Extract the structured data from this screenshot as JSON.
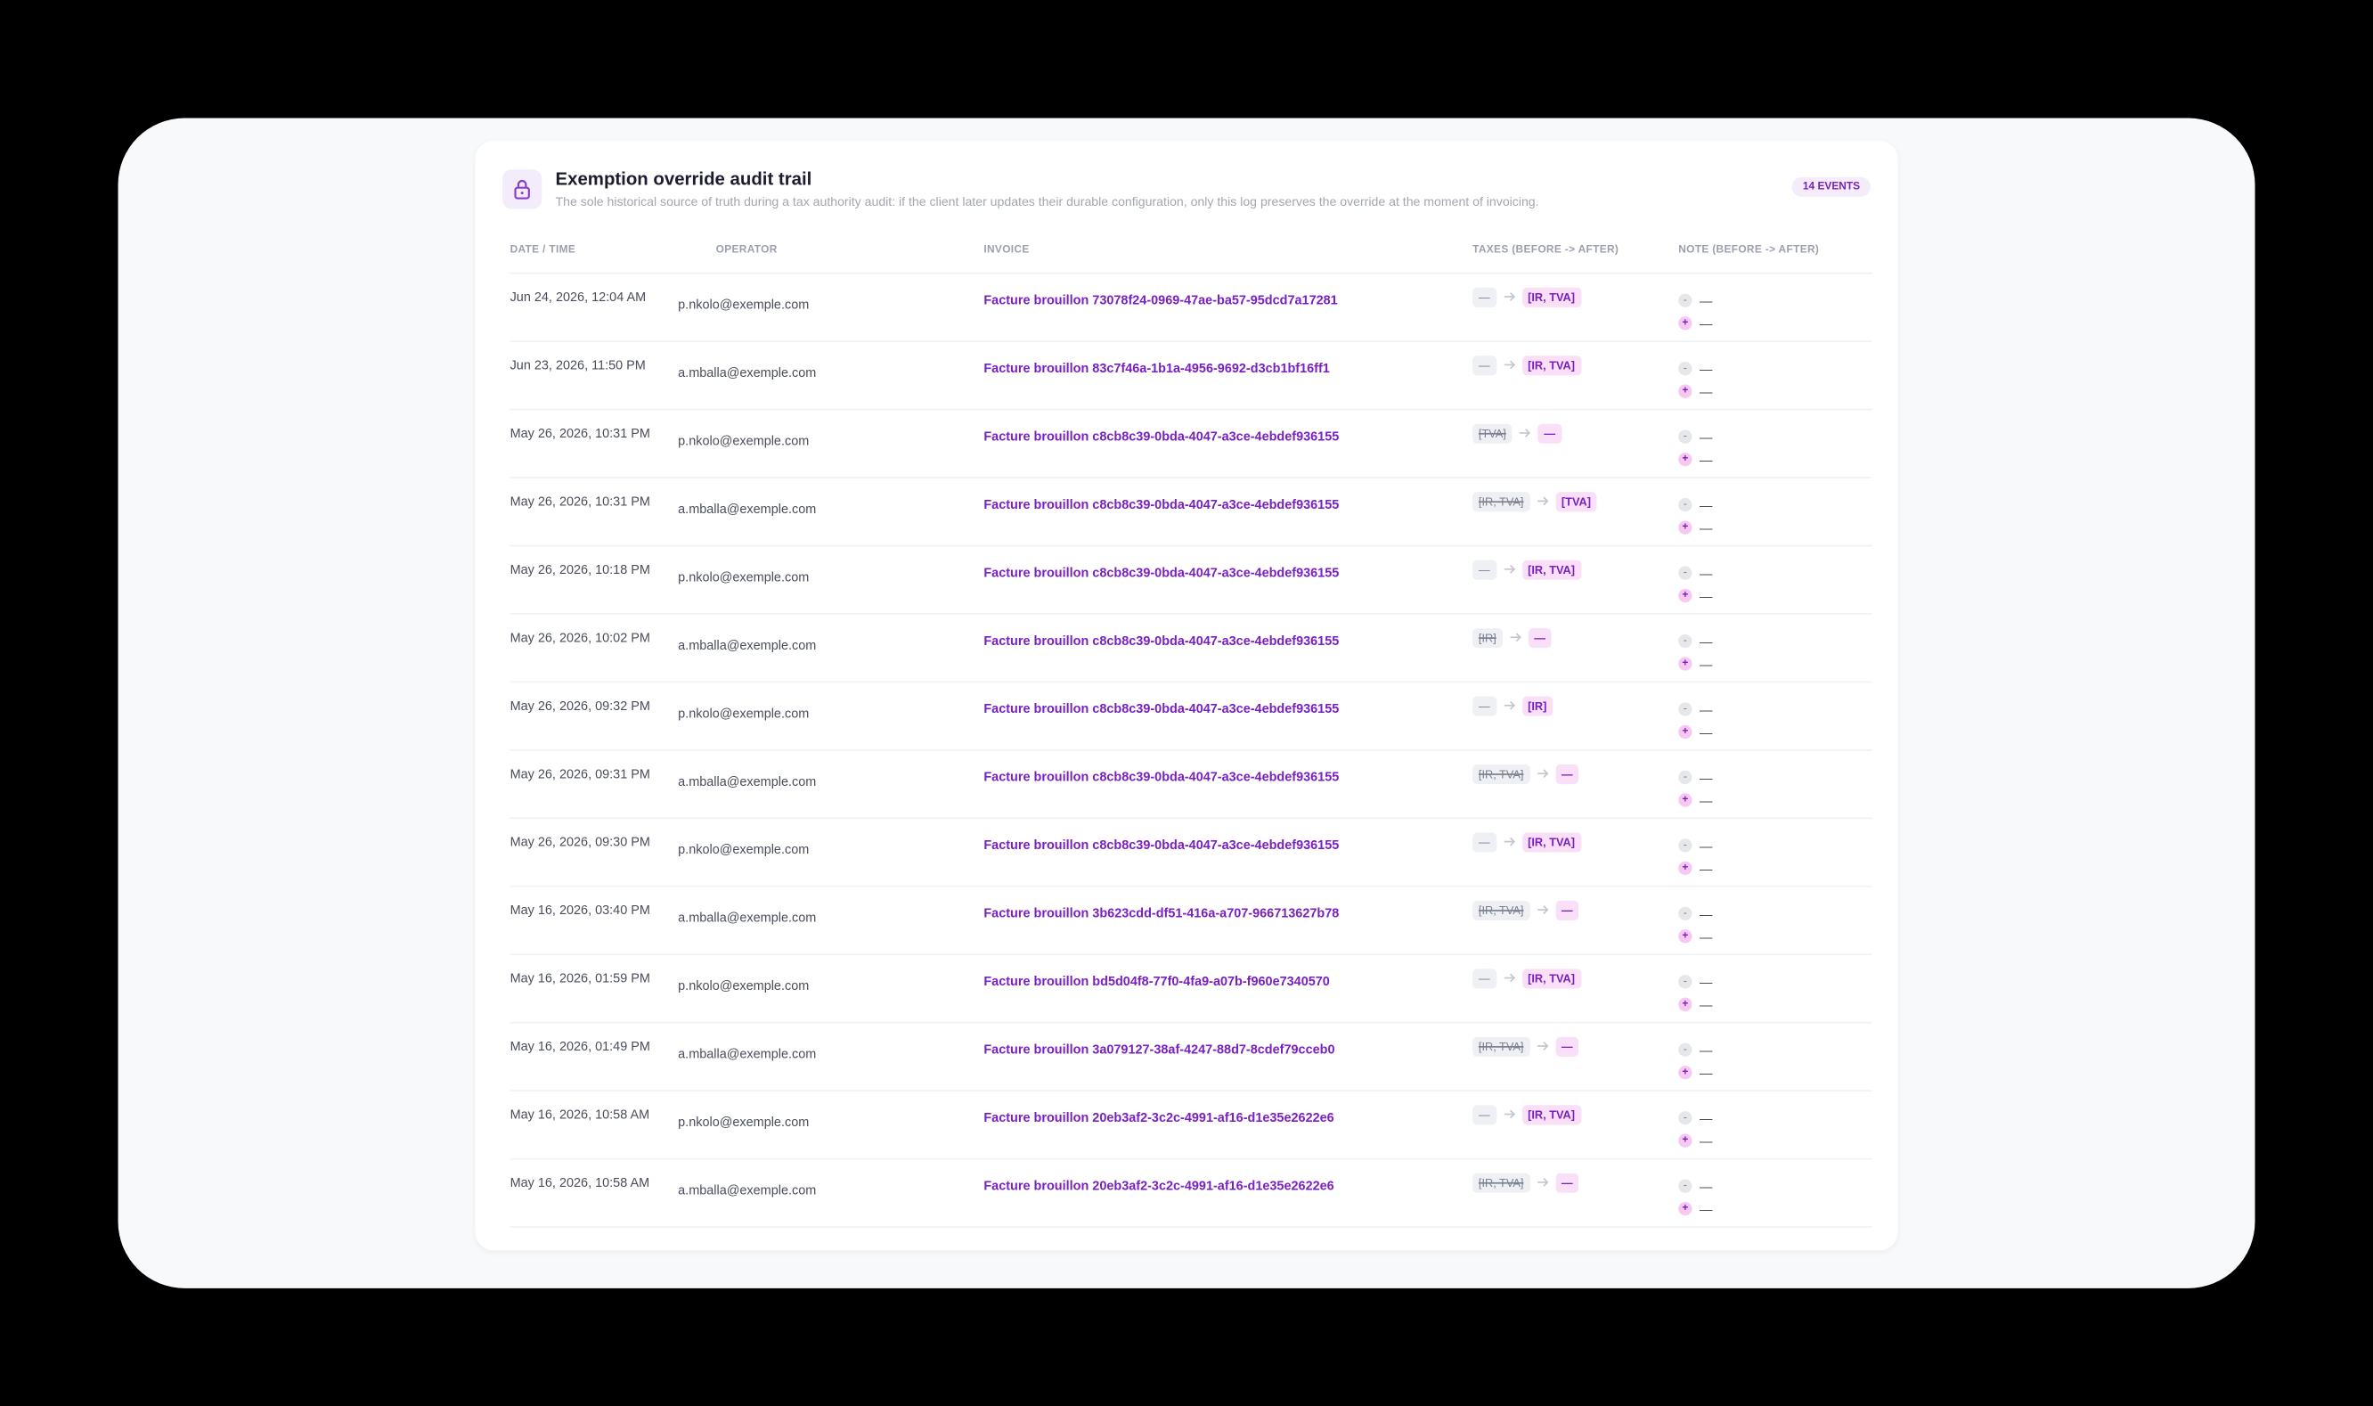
{
  "header": {
    "title": "Exemption override audit trail",
    "subtitle": "The sole historical source of truth during a tax authority audit: if the client later updates their durable configuration, only this log preserves the override at the moment of invoicing.",
    "badge": "14 EVENTS"
  },
  "table": {
    "columns": [
      "DATE / TIME",
      "OPERATOR",
      "INVOICE",
      "TAXES (BEFORE -> AFTER)",
      "NOTE (BEFORE -> AFTER)"
    ],
    "note_markers": {
      "before": "-",
      "after": "+"
    },
    "rows": [
      {
        "date": "Jun 24, 2026, 12:04 AM",
        "operator": "p.nkolo@exemple.com",
        "invoice": "Facture brouillon 73078f24-0969-47ae-ba57-95dcd7a17281",
        "taxes_before": "—",
        "taxes_after": "[IR, TVA]",
        "note_before": "—",
        "note_after": "—"
      },
      {
        "date": "Jun 23, 2026, 11:50 PM",
        "operator": "a.mballa@exemple.com",
        "invoice": "Facture brouillon 83c7f46a-1b1a-4956-9692-d3cb1bf16ff1",
        "taxes_before": "—",
        "taxes_after": "[IR, TVA]",
        "note_before": "—",
        "note_after": "—"
      },
      {
        "date": "May 26, 2026, 10:31 PM",
        "operator": "p.nkolo@exemple.com",
        "invoice": "Facture brouillon c8cb8c39-0bda-4047-a3ce-4ebdef936155",
        "taxes_before": "[TVA]",
        "taxes_after": "—",
        "note_before": "—",
        "note_after": "—"
      },
      {
        "date": "May 26, 2026, 10:31 PM",
        "operator": "a.mballa@exemple.com",
        "invoice": "Facture brouillon c8cb8c39-0bda-4047-a3ce-4ebdef936155",
        "taxes_before": "[IR, TVA]",
        "taxes_after": "[TVA]",
        "note_before": "—",
        "note_after": "—"
      },
      {
        "date": "May 26, 2026, 10:18 PM",
        "operator": "p.nkolo@exemple.com",
        "invoice": "Facture brouillon c8cb8c39-0bda-4047-a3ce-4ebdef936155",
        "taxes_before": "—",
        "taxes_after": "[IR, TVA]",
        "note_before": "—",
        "note_after": "—"
      },
      {
        "date": "May 26, 2026, 10:02 PM",
        "operator": "a.mballa@exemple.com",
        "invoice": "Facture brouillon c8cb8c39-0bda-4047-a3ce-4ebdef936155",
        "taxes_before": "[IR]",
        "taxes_after": "—",
        "note_before": "—",
        "note_after": "—"
      },
      {
        "date": "May 26, 2026, 09:32 PM",
        "operator": "p.nkolo@exemple.com",
        "invoice": "Facture brouillon c8cb8c39-0bda-4047-a3ce-4ebdef936155",
        "taxes_before": "—",
        "taxes_after": "[IR]",
        "note_before": "—",
        "note_after": "—"
      },
      {
        "date": "May 26, 2026, 09:31 PM",
        "operator": "a.mballa@exemple.com",
        "invoice": "Facture brouillon c8cb8c39-0bda-4047-a3ce-4ebdef936155",
        "taxes_before": "[IR, TVA]",
        "taxes_after": "—",
        "note_before": "—",
        "note_after": "—"
      },
      {
        "date": "May 26, 2026, 09:30 PM",
        "operator": "p.nkolo@exemple.com",
        "invoice": "Facture brouillon c8cb8c39-0bda-4047-a3ce-4ebdef936155",
        "taxes_before": "—",
        "taxes_after": "[IR, TVA]",
        "note_before": "—",
        "note_after": "—"
      },
      {
        "date": "May 16, 2026, 03:40 PM",
        "operator": "a.mballa@exemple.com",
        "invoice": "Facture brouillon 3b623cdd-df51-416a-a707-966713627b78",
        "taxes_before": "[IR, TVA]",
        "taxes_after": "—",
        "note_before": "—",
        "note_after": "—"
      },
      {
        "date": "May 16, 2026, 01:59 PM",
        "operator": "p.nkolo@exemple.com",
        "invoice": "Facture brouillon bd5d04f8-77f0-4fa9-a07b-f960e7340570",
        "taxes_before": "—",
        "taxes_after": "[IR, TVA]",
        "note_before": "—",
        "note_after": "—"
      },
      {
        "date": "May 16, 2026, 01:49 PM",
        "operator": "a.mballa@exemple.com",
        "invoice": "Facture brouillon 3a079127-38af-4247-88d7-8cdef79cceb0",
        "taxes_before": "[IR, TVA]",
        "taxes_after": "—",
        "note_before": "—",
        "note_after": "—"
      },
      {
        "date": "May 16, 2026, 10:58 AM",
        "operator": "p.nkolo@exemple.com",
        "invoice": "Facture brouillon 20eb3af2-3c2c-4991-af16-d1e35e2622e6",
        "taxes_before": "—",
        "taxes_after": "[IR, TVA]",
        "note_before": "—",
        "note_after": "—"
      },
      {
        "date": "May 16, 2026, 10:58 AM",
        "operator": "a.mballa@exemple.com",
        "invoice": "Facture brouillon 20eb3af2-3c2c-4991-af16-d1e35e2622e6",
        "taxes_before": "[IR, TVA]",
        "taxes_after": "—",
        "note_before": "—",
        "note_after": "—"
      }
    ]
  }
}
